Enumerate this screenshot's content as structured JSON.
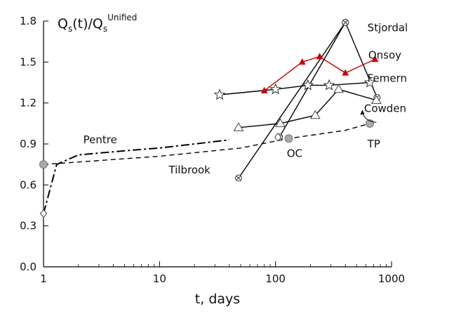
{
  "chart_data": {
    "type": "scatter",
    "xlabel": "t, days",
    "ylabel": "Qs(t)/QsUnified",
    "ylabel_parts": {
      "q1": "Q",
      "sub1": "s",
      "mid": "(t)/Q",
      "sub2": "s",
      "sup": "Unified"
    },
    "x_scale": "log",
    "xlim": [
      1,
      1000
    ],
    "ylim": [
      0.0,
      1.8
    ],
    "x_ticks": [
      1,
      10,
      100,
      1000
    ],
    "x_tick_labels": [
      "1",
      "10",
      "100",
      "1000"
    ],
    "y_ticks": [
      0.0,
      0.3,
      0.6,
      0.9,
      1.2,
      1.5,
      1.8
    ],
    "y_tick_labels": [
      "0.0",
      "0.3",
      "0.6",
      "0.9",
      "1.2",
      "1.5",
      "1.8"
    ],
    "grid": false,
    "legend": "none",
    "series": [
      {
        "name": "Stjordal",
        "marker": "circled-x",
        "color": "#000000",
        "line": "solid",
        "x": [
          48,
          400,
          750
        ],
        "y": [
          0.65,
          1.79,
          1.24
        ]
      },
      {
        "name": "Onsoy",
        "marker": "filled-triangle",
        "color": "#cc0000",
        "line": "solid",
        "x": [
          80,
          170,
          240,
          400,
          720
        ],
        "y": [
          1.29,
          1.5,
          1.54,
          1.42,
          1.52
        ]
      },
      {
        "name": "Femern",
        "marker": "star",
        "color": "#000000",
        "line": "solid",
        "x": [
          33,
          100,
          190,
          290,
          650
        ],
        "y": [
          1.26,
          1.3,
          1.33,
          1.33,
          1.35
        ]
      },
      {
        "name": "Cowden",
        "marker": "open-triangle",
        "color": "#000000",
        "line": "solid",
        "x": [
          48,
          110,
          220,
          350,
          740
        ],
        "y": [
          1.02,
          1.05,
          1.11,
          1.3,
          1.22
        ]
      },
      {
        "name": "Pentre",
        "marker": "open-diamond",
        "color": "#000000",
        "line": "dash-dot",
        "x": [
          1,
          1.3,
          2,
          5,
          10,
          20,
          40
        ],
        "y": [
          0.39,
          0.75,
          0.82,
          0.85,
          0.87,
          0.9,
          0.93
        ]
      },
      {
        "name": "Tilbrook",
        "marker": "filled-circle",
        "color": "#000000",
        "line": "dashed",
        "x": [
          1,
          10,
          50,
          130,
          400,
          650
        ],
        "y": [
          0.75,
          0.81,
          0.87,
          0.94,
          1.0,
          1.05
        ]
      },
      {
        "name": "OC",
        "marker": "circled-x",
        "color": "#000000",
        "line": "solid",
        "x": [
          108,
          400
        ],
        "y": [
          0.95,
          1.79
        ]
      }
    ],
    "extra_markers": [
      {
        "marker": "open-diamond",
        "x": 105,
        "y": 0.95
      }
    ],
    "annotations": [
      {
        "text": "Stjordal",
        "x": 620,
        "y": 1.75,
        "anchor": "start"
      },
      {
        "text": "Onsoy",
        "x": 630,
        "y": 1.55,
        "anchor": "start"
      },
      {
        "text": "Femern",
        "x": 620,
        "y": 1.38,
        "anchor": "start"
      },
      {
        "text": "Cowden",
        "x": 580,
        "y": 1.16,
        "anchor": "start"
      },
      {
        "text": "Pentre",
        "x": 2.2,
        "y": 0.93,
        "anchor": "start"
      },
      {
        "text": "Tilbrook",
        "x": 12,
        "y": 0.71,
        "anchor": "start"
      },
      {
        "text": "OC",
        "x": 125,
        "y": 0.83,
        "anchor": "start"
      },
      {
        "text": "TP",
        "x": 620,
        "y": 0.9,
        "anchor": "start"
      }
    ]
  }
}
